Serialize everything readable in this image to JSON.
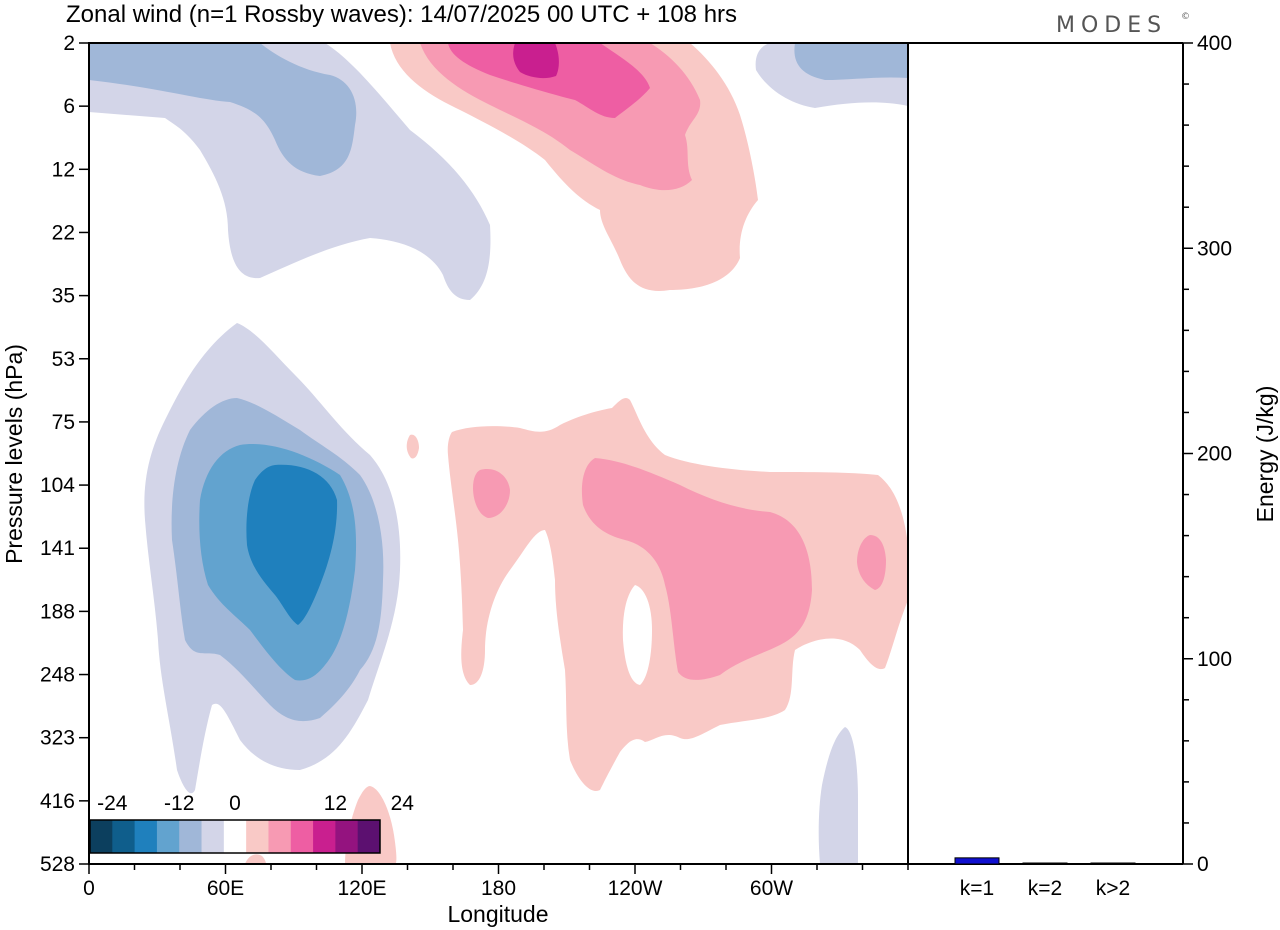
{
  "title": "Zonal wind (n=1 Rossby waves):  14/07/2025  00 UTC  + 108 hrs",
  "logo_text": "MODES",
  "logo_mark": "©",
  "chart_data": [
    {
      "type": "heatmap",
      "xlabel": "Longitude",
      "ylabel": "Pressure levels (hPa)",
      "x_ticks": [
        "0",
        "60E",
        "120E",
        "180",
        "120W",
        "60W"
      ],
      "x_tick_degrees": [
        0,
        60,
        120,
        180,
        240,
        300
      ],
      "x_range_degrees": [
        0,
        360
      ],
      "y_ticks": [
        "2",
        "6",
        "12",
        "22",
        "35",
        "53",
        "75",
        "104",
        "141",
        "188",
        "248",
        "323",
        "416",
        "528"
      ],
      "y_scale": "one tick per model level, top 2 hPa to bottom 528 hPa",
      "colorbar": {
        "tick_labels": [
          "-24",
          "-12",
          "0",
          "12",
          "24"
        ],
        "tick_values": [
          -24,
          -12,
          0,
          12,
          24
        ],
        "bins": [
          {
            "range": "< -24",
            "color": "#0c3f5e"
          },
          {
            "range": "-24 to -20",
            "color": "#0f5e8c"
          },
          {
            "range": "-20 to -16",
            "color": "#1f80bd"
          },
          {
            "range": "-16 to -12",
            "color": "#62a3cf"
          },
          {
            "range": "-12 to -8",
            "color": "#a0b7d8"
          },
          {
            "range": "-8 to -4",
            "color": "#d3d5e8"
          },
          {
            "range": "-4 to 4",
            "color": "#ffffff"
          },
          {
            "range": "4 to 8",
            "color": "#f9c9c6"
          },
          {
            "range": "8 to 12",
            "color": "#f79ab3"
          },
          {
            "range": "12 to 16",
            "color": "#ee5ea3"
          },
          {
            "range": "16 to 20",
            "color": "#c91f8f"
          },
          {
            "range": "20 to 24",
            "color": "#94137f"
          },
          {
            "range": "> 24",
            "color": "#5c1070"
          }
        ]
      },
      "features": [
        {
          "type": "easterly",
          "region": "stratosphere 0-160E",
          "min": -12
        },
        {
          "type": "westerly",
          "region": "stratosphere 110E-160W",
          "max": 20
        },
        {
          "type": "easterly",
          "region": "stratosphere east of 80W",
          "min": -12
        },
        {
          "type": "easterly",
          "region": "troposphere 20E-110E, 53-416 hPa",
          "min": -20
        },
        {
          "type": "westerly",
          "region": "troposphere 150E-0",
          "max": 12
        },
        {
          "type": "easterly",
          "region": "near surface ~40W",
          "min": -8
        },
        {
          "type": "westerly",
          "region": "near surface ~120E",
          "max": 12
        }
      ],
      "shading_colors": {
        "faint_blue": "#d3d5e8",
        "light_blue": "#a0b7d8",
        "mid_blue": "#62a3cf",
        "blue": "#1f80bd",
        "faint_pink": "#f9c9c6",
        "light_pink": "#f79ab3",
        "pink": "#ee5ea3",
        "magenta": "#c91f8f"
      }
    },
    {
      "type": "bar",
      "categories": [
        "k=1",
        "k=2",
        "k>2"
      ],
      "values": [
        3,
        0.4,
        0.3
      ],
      "ylabel": "Energy (J/kg)",
      "ylim": [
        0,
        400
      ],
      "y_ticks": [
        "0",
        "100",
        "200",
        "300",
        "400"
      ],
      "y_tick_values": [
        0,
        100,
        200,
        300,
        400
      ],
      "bar_color": "#1010d0"
    }
  ]
}
